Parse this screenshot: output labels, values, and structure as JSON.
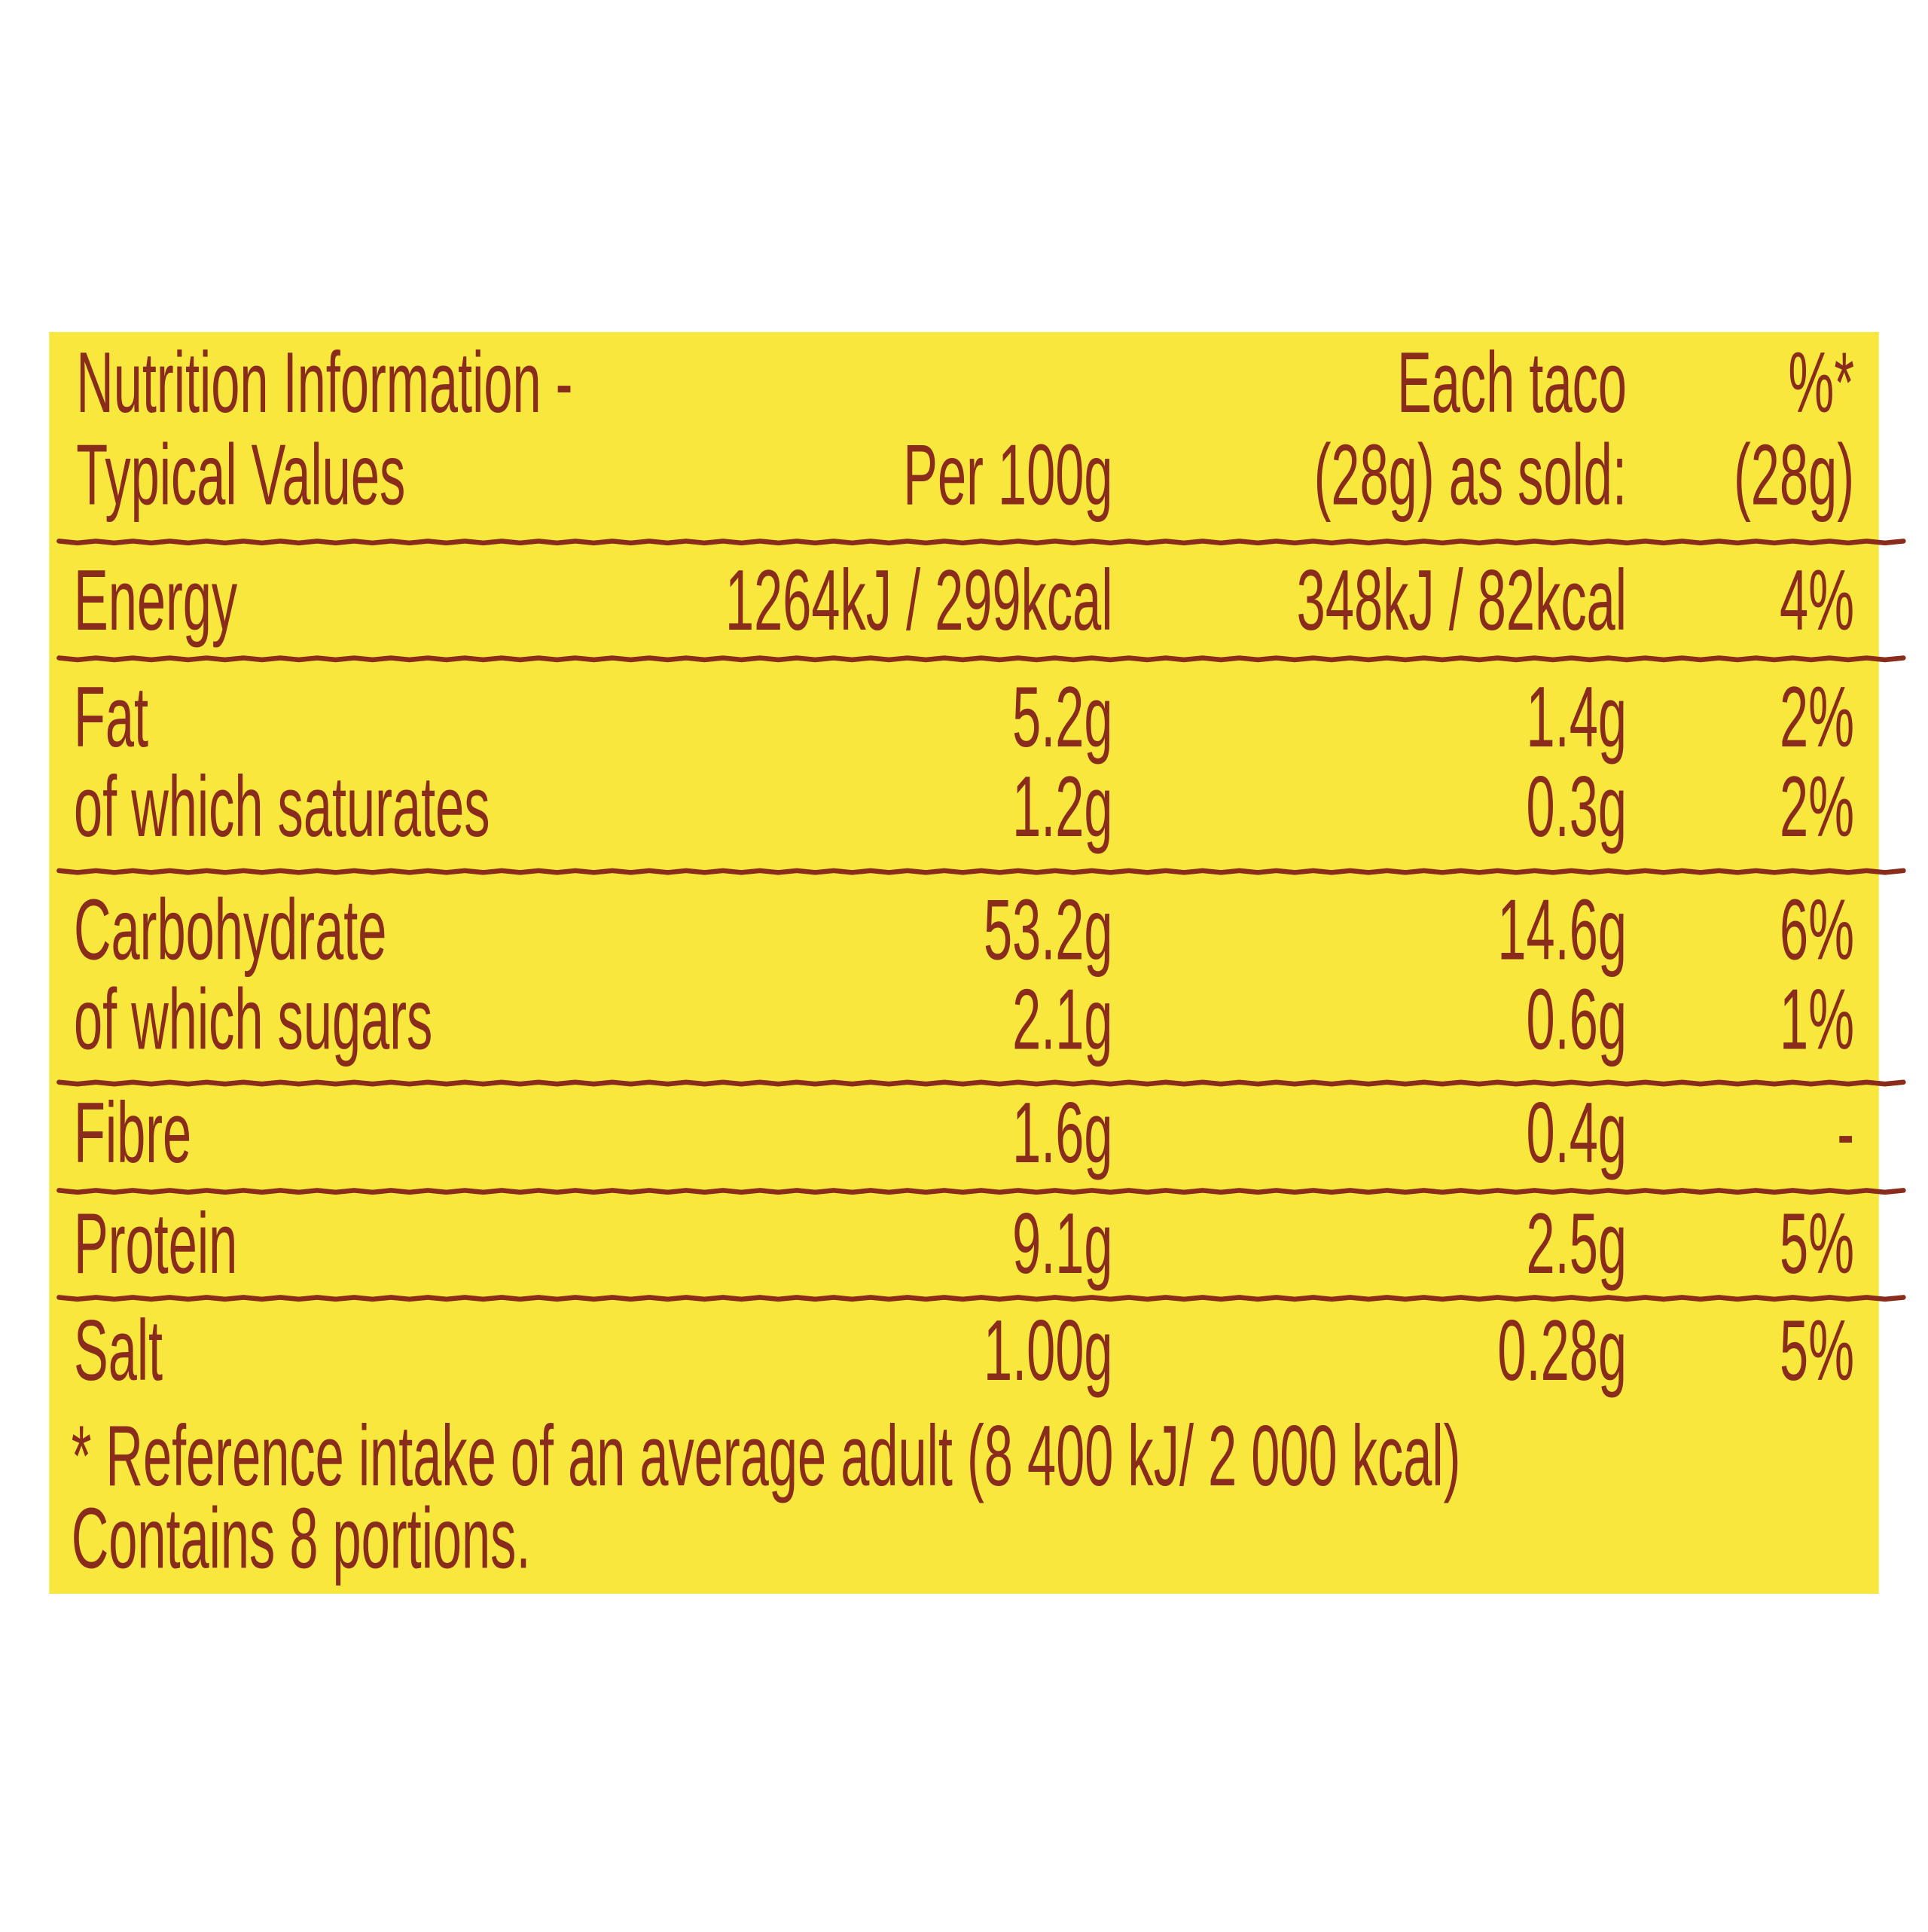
{
  "header": {
    "title_line1": "Nutrition Information -",
    "title_line2": "Typical Values",
    "per100_label": "Per 100g",
    "taco_line1": "Each taco",
    "taco_line2": "(28g) as sold:",
    "ri_line1": "%*",
    "ri_line2": "(28g)"
  },
  "table": {
    "rows": [
      [
        "Energy",
        "1264kJ / 299kcal",
        "348kJ / 82kcal",
        "4%"
      ],
      [
        "Fat",
        "5.2g",
        "1.4g",
        "2%"
      ],
      [
        "of which saturates",
        "1.2g",
        "0.3g",
        "2%"
      ],
      [
        "Carbohydrate",
        "53.2g",
        "14.6g",
        "6%"
      ],
      [
        "of which sugars",
        "2.1g",
        "0.6g",
        "1%"
      ],
      [
        "Fibre",
        "1.6g",
        "0.4g",
        "-"
      ],
      [
        "Protein",
        "9.1g",
        "2.5g",
        "5%"
      ],
      [
        "Salt",
        "1.00g",
        "0.28g",
        "5%"
      ]
    ]
  },
  "footnotes": [
    "* Reference intake of an average adult (8 400 kJ/ 2 000 kcal)",
    "Contains 8 portions."
  ]
}
